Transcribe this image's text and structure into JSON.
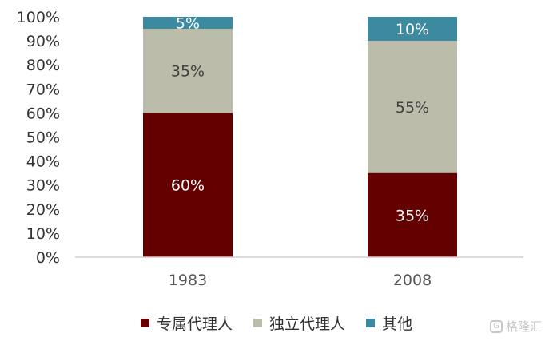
{
  "chart_data": {
    "type": "bar",
    "stacked": true,
    "categories": [
      "1983",
      "2008"
    ],
    "series": [
      {
        "name": "专属代理人",
        "values": [
          60,
          35
        ],
        "labels": [
          "60%",
          "35%"
        ],
        "color": "#650000",
        "label_color": "#ffffff"
      },
      {
        "name": "独立代理人",
        "values": [
          35,
          55
        ],
        "labels": [
          "35%",
          "55%"
        ],
        "color": "#bcbcaa",
        "label_color": "#404040"
      },
      {
        "name": "其他",
        "values": [
          5,
          10
        ],
        "labels": [
          "5%",
          "10%"
        ],
        "color": "#3b8aa0",
        "label_color": "#ffffff"
      }
    ],
    "yticks": [
      "0%",
      "10%",
      "20%",
      "30%",
      "40%",
      "50%",
      "60%",
      "70%",
      "80%",
      "90%",
      "100%"
    ],
    "ylim": [
      0,
      100
    ],
    "grid": false,
    "legend_position": "bottom"
  },
  "watermark": {
    "text": "格隆汇",
    "icon": "g-logo-icon"
  }
}
